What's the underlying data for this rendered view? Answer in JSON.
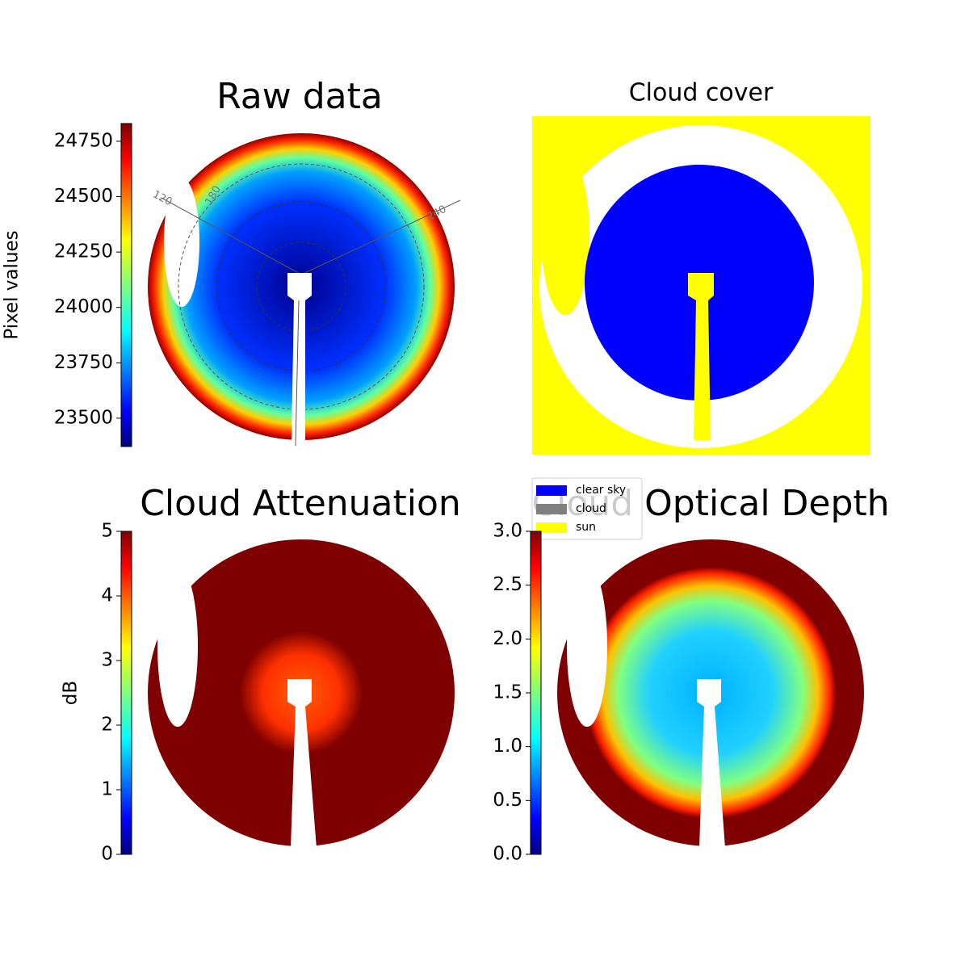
{
  "chart_data": [
    {
      "type": "image",
      "title": "Raw data",
      "colormap": "jet",
      "colorbar_label": "Pixel values",
      "ylim": [
        23372,
        24830
      ],
      "yticks": [
        23500,
        23750,
        24000,
        24250,
        24500,
        24750
      ],
      "annotations": [
        "120",
        "180",
        "240"
      ]
    },
    {
      "type": "image",
      "title": "Cloud cover",
      "legend": {
        "labels": [
          "clear sky",
          "cloud",
          "sun"
        ],
        "colors": [
          "#0000ff",
          "#808080",
          "#ffff00"
        ],
        "loc": "lower left"
      }
    },
    {
      "type": "image",
      "title": "Cloud Attenuation",
      "colormap": "jet",
      "colorbar_label": "dB",
      "ylim": [
        0,
        5
      ],
      "yticks": [
        0,
        1,
        2,
        3,
        4,
        5
      ]
    },
    {
      "type": "image",
      "title": "Cloud Optical Depth",
      "colormap": "jet",
      "ylim": [
        0,
        3
      ],
      "yticks": [
        {
          "value": 0,
          "label": "0.0"
        },
        0.5,
        {
          "value": 1,
          "label": "1.0"
        },
        1.5,
        {
          "value": 2,
          "label": "2.0"
        },
        2.5,
        {
          "value": 3,
          "label": "3.0"
        }
      ]
    }
  ]
}
